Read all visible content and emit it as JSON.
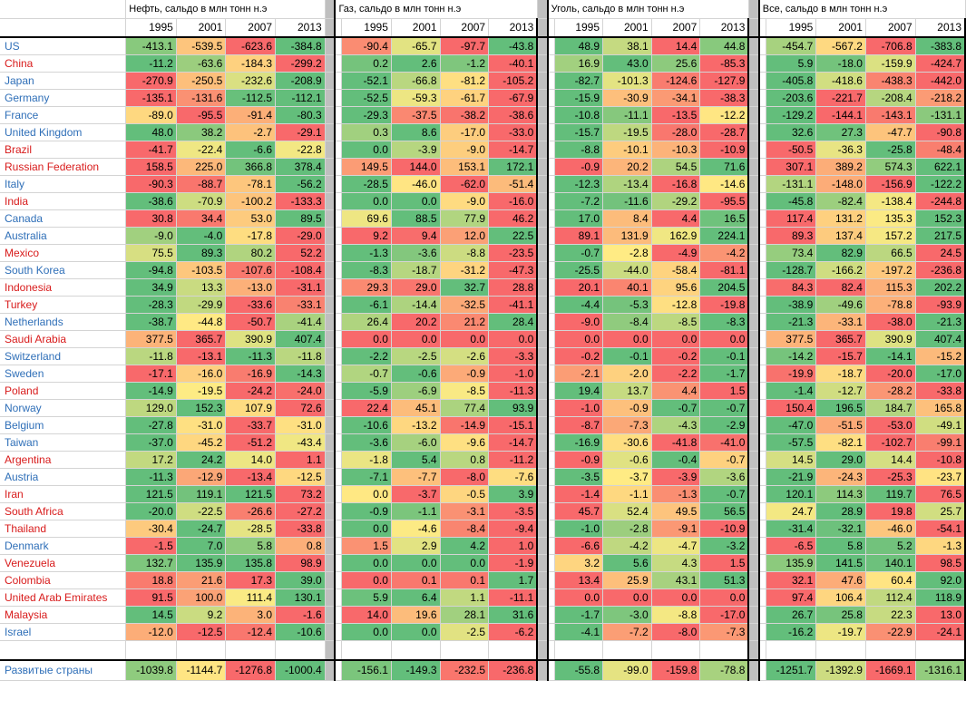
{
  "colors": {
    "developed": "#2f6fb8",
    "developing": "#d81b1b"
  },
  "headers": {
    "oil": "Нефть, сальдо в млн тонн н.э",
    "gas": "Газ, сальдо в млн тонн н.э",
    "coal": "Уголь, сальдо в млн тонн н.э",
    "all": "Все, сальдо в млн тонн н.э"
  },
  "years": [
    "1995",
    "2001",
    "2007",
    "2013"
  ],
  "rows": [
    {
      "name": "US",
      "group": "developed",
      "oil": [
        "-413.1",
        "-539.5",
        "-623.6",
        "-384.8"
      ],
      "gas": [
        "-90.4",
        "-65.7",
        "-97.7",
        "-43.8"
      ],
      "coal": [
        "48.9",
        "38.1",
        "14.4",
        "44.8"
      ],
      "all": [
        "-454.7",
        "-567.2",
        "-706.8",
        "-383.8"
      ]
    },
    {
      "name": "China",
      "group": "developing",
      "oil": [
        "-11.2",
        "-63.6",
        "-184.3",
        "-299.2"
      ],
      "gas": [
        "0.2",
        "2.6",
        "-1.2",
        "-40.1"
      ],
      "coal": [
        "16.9",
        "43.0",
        "25.6",
        "-85.3"
      ],
      "all": [
        "5.9",
        "-18.0",
        "-159.9",
        "-424.7"
      ]
    },
    {
      "name": "Japan",
      "group": "developed",
      "oil": [
        "-270.9",
        "-250.5",
        "-232.6",
        "-208.9"
      ],
      "gas": [
        "-52.1",
        "-66.8",
        "-81.2",
        "-105.2"
      ],
      "coal": [
        "-82.7",
        "-101.3",
        "-124.6",
        "-127.9"
      ],
      "all": [
        "-405.8",
        "-418.6",
        "-438.3",
        "-442.0"
      ]
    },
    {
      "name": "Germany",
      "group": "developed",
      "oil": [
        "-135.1",
        "-131.6",
        "-112.5",
        "-112.1"
      ],
      "gas": [
        "-52.5",
        "-59.3",
        "-61.7",
        "-67.9"
      ],
      "coal": [
        "-15.9",
        "-30.9",
        "-34.1",
        "-38.3"
      ],
      "all": [
        "-203.6",
        "-221.7",
        "-208.4",
        "-218.2"
      ]
    },
    {
      "name": "France",
      "group": "developed",
      "oil": [
        "-89.0",
        "-95.5",
        "-91.4",
        "-80.3"
      ],
      "gas": [
        "-29.3",
        "-37.5",
        "-38.2",
        "-38.6"
      ],
      "coal": [
        "-10.8",
        "-11.1",
        "-13.5",
        "-12.2"
      ],
      "all": [
        "-129.2",
        "-144.1",
        "-143.1",
        "-131.1"
      ]
    },
    {
      "name": "United Kingdom",
      "group": "developed",
      "oil": [
        "48.0",
        "38.2",
        "-2.7",
        "-29.1"
      ],
      "gas": [
        "0.3",
        "8.6",
        "-17.0",
        "-33.0"
      ],
      "coal": [
        "-15.7",
        "-19.5",
        "-28.0",
        "-28.7"
      ],
      "all": [
        "32.6",
        "27.3",
        "-47.7",
        "-90.8"
      ]
    },
    {
      "name": "Brazil",
      "group": "developing",
      "oil": [
        "-41.7",
        "-22.4",
        "-6.6",
        "-22.8"
      ],
      "gas": [
        "0.0",
        "-3.9",
        "-9.0",
        "-14.7"
      ],
      "coal": [
        "-8.8",
        "-10.1",
        "-10.3",
        "-10.9"
      ],
      "all": [
        "-50.5",
        "-36.3",
        "-25.8",
        "-48.4"
      ]
    },
    {
      "name": "Russian Federation",
      "group": "developing",
      "oil": [
        "158.5",
        "225.0",
        "366.8",
        "378.4"
      ],
      "gas": [
        "149.5",
        "144.0",
        "153.1",
        "172.1"
      ],
      "coal": [
        "-0.9",
        "20.2",
        "54.5",
        "71.6"
      ],
      "all": [
        "307.1",
        "389.2",
        "574.3",
        "622.1"
      ]
    },
    {
      "name": "Italy",
      "group": "developed",
      "oil": [
        "-90.3",
        "-88.7",
        "-78.1",
        "-56.2"
      ],
      "gas": [
        "-28.5",
        "-46.0",
        "-62.0",
        "-51.4"
      ],
      "coal": [
        "-12.3",
        "-13.4",
        "-16.8",
        "-14.6"
      ],
      "all": [
        "-131.1",
        "-148.0",
        "-156.9",
        "-122.2"
      ]
    },
    {
      "name": "India",
      "group": "developing",
      "oil": [
        "-38.6",
        "-70.9",
        "-100.2",
        "-133.3"
      ],
      "gas": [
        "0.0",
        "0.0",
        "-9.0",
        "-16.0"
      ],
      "coal": [
        "-7.2",
        "-11.6",
        "-29.2",
        "-95.5"
      ],
      "all": [
        "-45.8",
        "-82.4",
        "-138.4",
        "-244.8"
      ]
    },
    {
      "name": "Canada",
      "group": "developed",
      "oil": [
        "30.8",
        "34.4",
        "53.0",
        "89.5"
      ],
      "gas": [
        "69.6",
        "88.5",
        "77.9",
        "46.2"
      ],
      "coal": [
        "17.0",
        "8.4",
        "4.4",
        "16.5"
      ],
      "all": [
        "117.4",
        "131.2",
        "135.3",
        "152.3"
      ]
    },
    {
      "name": "Australia",
      "group": "developed",
      "oil": [
        "-9.0",
        "-4.0",
        "-17.8",
        "-29.0"
      ],
      "gas": [
        "9.2",
        "9.4",
        "12.0",
        "22.5"
      ],
      "coal": [
        "89.1",
        "131.9",
        "162.9",
        "224.1"
      ],
      "all": [
        "89.3",
        "137.4",
        "157.2",
        "217.5"
      ]
    },
    {
      "name": "Mexico",
      "group": "developing",
      "oil": [
        "75.5",
        "89.3",
        "80.2",
        "52.2"
      ],
      "gas": [
        "-1.3",
        "-3.6",
        "-8.8",
        "-23.5"
      ],
      "coal": [
        "-0.7",
        "-2.8",
        "-4.9",
        "-4.2"
      ],
      "all": [
        "73.4",
        "82.9",
        "66.5",
        "24.5"
      ]
    },
    {
      "name": "South Korea",
      "group": "developed",
      "oil": [
        "-94.8",
        "-103.5",
        "-107.6",
        "-108.4"
      ],
      "gas": [
        "-8.3",
        "-18.7",
        "-31.2",
        "-47.3"
      ],
      "coal": [
        "-25.5",
        "-44.0",
        "-58.4",
        "-81.1"
      ],
      "all": [
        "-128.7",
        "-166.2",
        "-197.2",
        "-236.8"
      ]
    },
    {
      "name": "Indonesia",
      "group": "developing",
      "oil": [
        "34.9",
        "13.3",
        "-13.0",
        "-31.1"
      ],
      "gas": [
        "29.3",
        "29.0",
        "32.7",
        "28.8"
      ],
      "coal": [
        "20.1",
        "40.1",
        "95.6",
        "204.5"
      ],
      "all": [
        "84.3",
        "82.4",
        "115.3",
        "202.2"
      ]
    },
    {
      "name": "Turkey",
      "group": "developing",
      "oil": [
        "-28.3",
        "-29.9",
        "-33.6",
        "-33.1"
      ],
      "gas": [
        "-6.1",
        "-14.4",
        "-32.5",
        "-41.1"
      ],
      "coal": [
        "-4.4",
        "-5.3",
        "-12.8",
        "-19.8"
      ],
      "all": [
        "-38.9",
        "-49.6",
        "-78.8",
        "-93.9"
      ]
    },
    {
      "name": "Netherlands",
      "group": "developed",
      "oil": [
        "-38.7",
        "-44.8",
        "-50.7",
        "-41.4"
      ],
      "gas": [
        "26.4",
        "20.2",
        "21.2",
        "28.4"
      ],
      "coal": [
        "-9.0",
        "-8.4",
        "-8.5",
        "-8.3"
      ],
      "all": [
        "-21.3",
        "-33.1",
        "-38.0",
        "-21.3"
      ]
    },
    {
      "name": "Saudi Arabia",
      "group": "developing",
      "oil": [
        "377.5",
        "365.7",
        "390.9",
        "407.4"
      ],
      "gas": [
        "0.0",
        "0.0",
        "0.0",
        "0.0"
      ],
      "coal": [
        "0.0",
        "0.0",
        "0.0",
        "0.0"
      ],
      "all": [
        "377.5",
        "365.7",
        "390.9",
        "407.4"
      ]
    },
    {
      "name": "Switzerland",
      "group": "developed",
      "oil": [
        "-11.8",
        "-13.1",
        "-11.3",
        "-11.8"
      ],
      "gas": [
        "-2.2",
        "-2.5",
        "-2.6",
        "-3.3"
      ],
      "coal": [
        "-0.2",
        "-0.1",
        "-0.2",
        "-0.1"
      ],
      "all": [
        "-14.2",
        "-15.7",
        "-14.1",
        "-15.2"
      ]
    },
    {
      "name": "Sweden",
      "group": "developed",
      "oil": [
        "-17.1",
        "-16.0",
        "-16.9",
        "-14.3"
      ],
      "gas": [
        "-0.7",
        "-0.6",
        "-0.9",
        "-1.0"
      ],
      "coal": [
        "-2.1",
        "-2.0",
        "-2.2",
        "-1.7"
      ],
      "all": [
        "-19.9",
        "-18.7",
        "-20.0",
        "-17.0"
      ]
    },
    {
      "name": "Poland",
      "group": "developing",
      "oil": [
        "-14.9",
        "-19.5",
        "-24.2",
        "-24.0"
      ],
      "gas": [
        "-5.9",
        "-6.9",
        "-8.5",
        "-11.3"
      ],
      "coal": [
        "19.4",
        "13.7",
        "4.4",
        "1.5"
      ],
      "all": [
        "-1.4",
        "-12.7",
        "-28.2",
        "-33.8"
      ]
    },
    {
      "name": "Norway",
      "group": "developed",
      "oil": [
        "129.0",
        "152.3",
        "107.9",
        "72.6"
      ],
      "gas": [
        "22.4",
        "45.1",
        "77.4",
        "93.9"
      ],
      "coal": [
        "-1.0",
        "-0.9",
        "-0.7",
        "-0.7"
      ],
      "all": [
        "150.4",
        "196.5",
        "184.7",
        "165.8"
      ]
    },
    {
      "name": "Belgium",
      "group": "developed",
      "oil": [
        "-27.8",
        "-31.0",
        "-33.7",
        "-31.0"
      ],
      "gas": [
        "-10.6",
        "-13.2",
        "-14.9",
        "-15.1"
      ],
      "coal": [
        "-8.7",
        "-7.3",
        "-4.3",
        "-2.9"
      ],
      "all": [
        "-47.0",
        "-51.5",
        "-53.0",
        "-49.1"
      ]
    },
    {
      "name": "Taiwan",
      "group": "developed",
      "oil": [
        "-37.0",
        "-45.2",
        "-51.2",
        "-43.4"
      ],
      "gas": [
        "-3.6",
        "-6.0",
        "-9.6",
        "-14.7"
      ],
      "coal": [
        "-16.9",
        "-30.6",
        "-41.8",
        "-41.0"
      ],
      "all": [
        "-57.5",
        "-82.1",
        "-102.7",
        "-99.1"
      ]
    },
    {
      "name": "Argentina",
      "group": "developing",
      "oil": [
        "17.2",
        "24.2",
        "14.0",
        "1.1"
      ],
      "gas": [
        "-1.8",
        "5.4",
        "0.8",
        "-11.2"
      ],
      "coal": [
        "-0.9",
        "-0.6",
        "-0.4",
        "-0.7"
      ],
      "all": [
        "14.5",
        "29.0",
        "14.4",
        "-10.8"
      ]
    },
    {
      "name": "Austria",
      "group": "developed",
      "oil": [
        "-11.3",
        "-12.9",
        "-13.4",
        "-12.5"
      ],
      "gas": [
        "-7.1",
        "-7.7",
        "-8.0",
        "-7.6"
      ],
      "coal": [
        "-3.5",
        "-3.7",
        "-3.9",
        "-3.6"
      ],
      "all": [
        "-21.9",
        "-24.3",
        "-25.3",
        "-23.7"
      ]
    },
    {
      "name": "Iran",
      "group": "developing",
      "oil": [
        "121.5",
        "119.1",
        "121.5",
        "73.2"
      ],
      "gas": [
        "0.0",
        "-3.7",
        "-0.5",
        "3.9"
      ],
      "coal": [
        "-1.4",
        "-1.1",
        "-1.3",
        "-0.7"
      ],
      "all": [
        "120.1",
        "114.3",
        "119.7",
        "76.5"
      ]
    },
    {
      "name": "South Africa",
      "group": "developing",
      "oil": [
        "-20.0",
        "-22.5",
        "-26.6",
        "-27.2"
      ],
      "gas": [
        "-0.9",
        "-1.1",
        "-3.1",
        "-3.5"
      ],
      "coal": [
        "45.7",
        "52.4",
        "49.5",
        "56.5"
      ],
      "all": [
        "24.7",
        "28.9",
        "19.8",
        "25.7"
      ]
    },
    {
      "name": "Thailand",
      "group": "developing",
      "oil": [
        "-30.4",
        "-24.7",
        "-28.5",
        "-33.8"
      ],
      "gas": [
        "0.0",
        "-4.6",
        "-8.4",
        "-9.4"
      ],
      "coal": [
        "-1.0",
        "-2.8",
        "-9.1",
        "-10.9"
      ],
      "all": [
        "-31.4",
        "-32.1",
        "-46.0",
        "-54.1"
      ]
    },
    {
      "name": "Denmark",
      "group": "developed",
      "oil": [
        "-1.5",
        "7.0",
        "5.8",
        "0.8"
      ],
      "gas": [
        "1.5",
        "2.9",
        "4.2",
        "1.0"
      ],
      "coal": [
        "-6.6",
        "-4.2",
        "-4.7",
        "-3.2"
      ],
      "all": [
        "-6.5",
        "5.8",
        "5.2",
        "-1.3"
      ]
    },
    {
      "name": "Venezuela",
      "group": "developing",
      "oil": [
        "132.7",
        "135.9",
        "135.8",
        "98.9"
      ],
      "gas": [
        "0.0",
        "0.0",
        "0.0",
        "-1.9"
      ],
      "coal": [
        "3.2",
        "5.6",
        "4.3",
        "1.5"
      ],
      "all": [
        "135.9",
        "141.5",
        "140.1",
        "98.5"
      ]
    },
    {
      "name": "Colombia",
      "group": "developing",
      "oil": [
        "18.8",
        "21.6",
        "17.3",
        "39.0"
      ],
      "gas": [
        "0.0",
        "0.1",
        "0.1",
        "1.7"
      ],
      "coal": [
        "13.4",
        "25.9",
        "43.1",
        "51.3"
      ],
      "all": [
        "32.1",
        "47.6",
        "60.4",
        "92.0"
      ]
    },
    {
      "name": "United Arab Emirates",
      "group": "developing",
      "oil": [
        "91.5",
        "100.0",
        "111.4",
        "130.1"
      ],
      "gas": [
        "5.9",
        "6.4",
        "1.1",
        "-11.1"
      ],
      "coal": [
        "0.0",
        "0.0",
        "0.0",
        "0.0"
      ],
      "all": [
        "97.4",
        "106.4",
        "112.4",
        "118.9"
      ]
    },
    {
      "name": "Malaysia",
      "group": "developing",
      "oil": [
        "14.5",
        "9.2",
        "3.0",
        "-1.6"
      ],
      "gas": [
        "14.0",
        "19.6",
        "28.1",
        "31.6"
      ],
      "coal": [
        "-1.7",
        "-3.0",
        "-8.8",
        "-17.0"
      ],
      "all": [
        "26.7",
        "25.8",
        "22.3",
        "13.0"
      ]
    },
    {
      "name": "Israel",
      "group": "developed",
      "oil": [
        "-12.0",
        "-12.5",
        "-12.4",
        "-10.6"
      ],
      "gas": [
        "0.0",
        "0.0",
        "-2.5",
        "-6.2"
      ],
      "coal": [
        "-4.1",
        "-7.2",
        "-8.0",
        "-7.3"
      ],
      "all": [
        "-16.2",
        "-19.7",
        "-22.9",
        "-24.1"
      ]
    }
  ],
  "summary": {
    "name": "Развитые страны",
    "group": "developed",
    "oil": [
      "-1039.8",
      "-1144.7",
      "-1276.8",
      "-1000.4"
    ],
    "gas": [
      "-156.1",
      "-149.3",
      "-232.5",
      "-236.8"
    ],
    "coal": [
      "-55.8",
      "-99.0",
      "-159.8",
      "-78.8"
    ],
    "all": [
      "-1251.7",
      "-1392.9",
      "-1669.1",
      "-1316.1"
    ]
  }
}
